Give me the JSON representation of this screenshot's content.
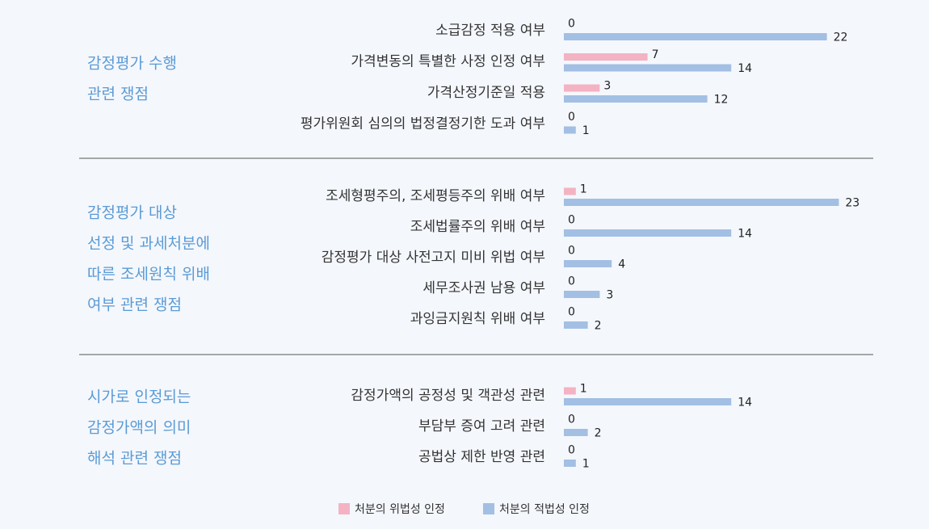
{
  "chart_data": {
    "type": "bar",
    "orientation": "horizontal",
    "legend": [
      {
        "name": "처분의 위법성 인정",
        "color": "#f3b3c3"
      },
      {
        "name": "처분의 적법성 인정",
        "color": "#a3bfe3"
      }
    ],
    "legend_position": "bottom-center",
    "grid": false,
    "xlim": [
      0,
      23
    ],
    "groups": [
      {
        "label_lines": [
          "감정평가 수행",
          "관련 쟁점"
        ],
        "items": [
          {
            "label": "소급감정 적용 여부",
            "illegal": 0,
            "legal": 22
          },
          {
            "label": "가격변동의 특별한 사정 인정 여부",
            "illegal": 7,
            "legal": 14
          },
          {
            "label": "가격산정기준일 적용",
            "illegal": 3,
            "legal": 12
          },
          {
            "label": "평가위원회 심의의 법정결정기한 도과 여부",
            "illegal": 0,
            "legal": 1
          }
        ]
      },
      {
        "label_lines": [
          "감정평가 대상",
          "선정 및 과세처분에",
          "따른 조세원칙 위배",
          "여부 관련 쟁점"
        ],
        "items": [
          {
            "label": "조세형평주의, 조세평등주의 위배 여부",
            "illegal": 1,
            "legal": 23
          },
          {
            "label": "조세법률주의 위배 여부",
            "illegal": 0,
            "legal": 14
          },
          {
            "label": "감정평가 대상 사전고지 미비 위법 여부",
            "illegal": 0,
            "legal": 4
          },
          {
            "label": "세무조사권 남용 여부",
            "illegal": 0,
            "legal": 3
          },
          {
            "label": "과잉금지원칙 위배 여부",
            "illegal": 0,
            "legal": 2
          }
        ]
      },
      {
        "label_lines": [
          "시가로 인정되는",
          "감정가액의 의미",
          "해석 관련 쟁점"
        ],
        "items": [
          {
            "label": "감정가액의 공정성 및 객관성 관련",
            "illegal": 1,
            "legal": 14
          },
          {
            "label": "부담부 증여 고려 관련",
            "illegal": 0,
            "legal": 2
          },
          {
            "label": "공법상 제한 반영 관련",
            "illegal": 0,
            "legal": 1
          }
        ]
      }
    ]
  }
}
